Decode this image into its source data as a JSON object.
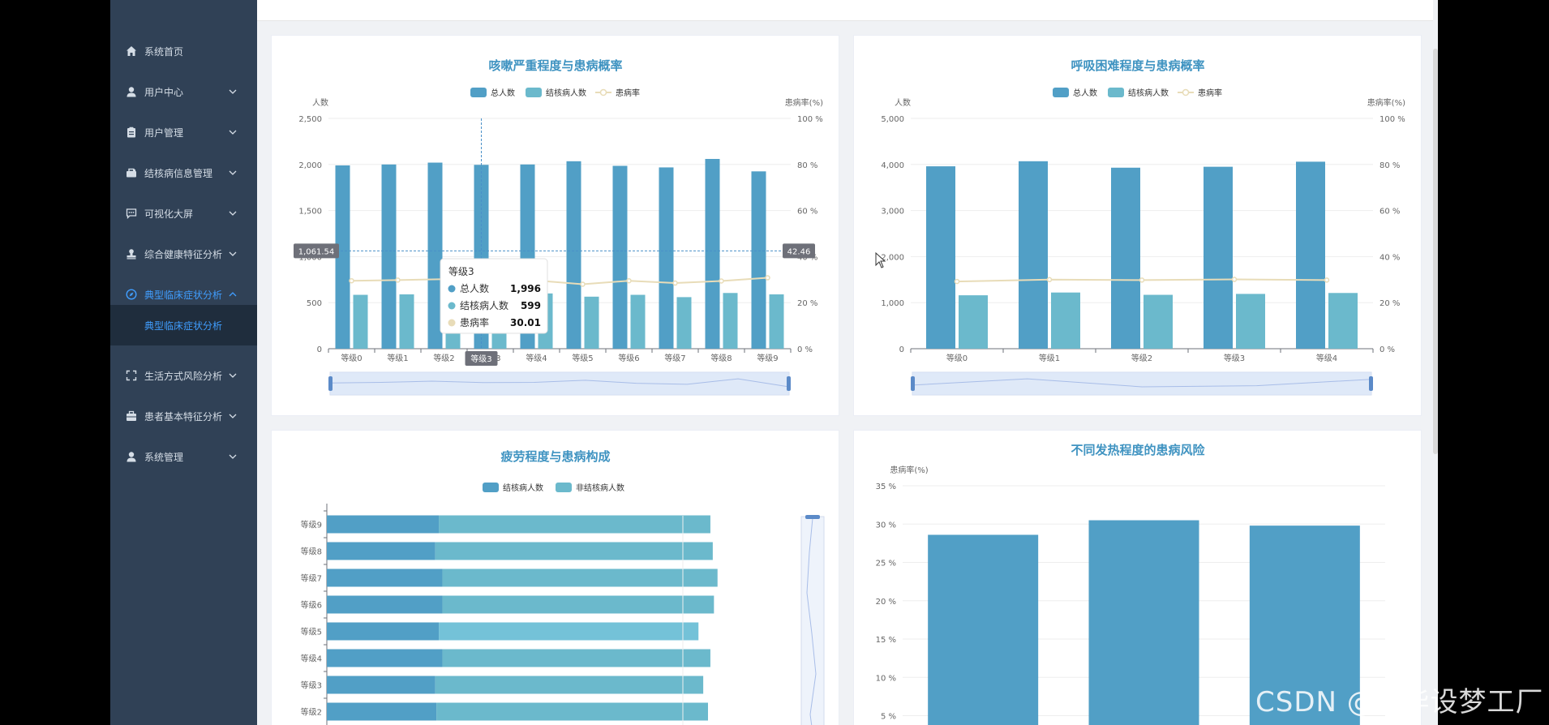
{
  "sidebar": {
    "items": [
      {
        "label": "系统首页",
        "icon": "home-icon",
        "chevron": false
      },
      {
        "label": "用户中心",
        "icon": "user-icon",
        "chevron": true
      },
      {
        "label": "用户管理",
        "icon": "clipboard-icon",
        "chevron": true
      },
      {
        "label": "结核病信息管理",
        "icon": "briefcase-icon",
        "chevron": true
      },
      {
        "label": "可视化大屏",
        "icon": "message-icon",
        "chevron": true
      },
      {
        "label": "综合健康特征分析",
        "icon": "stamp-icon",
        "chevron": true
      },
      {
        "label": "典型临床症状分析",
        "icon": "compass-icon",
        "chevron": true,
        "active": true
      },
      {
        "label": "生活方式风险分析",
        "icon": "fullscreen-icon",
        "chevron": true
      },
      {
        "label": "患者基本特征分析",
        "icon": "suitcase-icon",
        "chevron": true
      },
      {
        "label": "系统管理",
        "icon": "user-icon",
        "chevron": true
      }
    ],
    "sub_item": "典型临床症状分析"
  },
  "watermark": "CSDN @IT毕设梦工厂",
  "colors": {
    "bar_total": "#519fc6",
    "bar_tb": "#6bb9cc",
    "line": "#e8dcb8",
    "title": "#3f93c1",
    "sidebar": "#304156",
    "active": "#409eff"
  },
  "chart_data": [
    {
      "type": "bar",
      "title": "咳嗽严重程度与患病概率",
      "legend": [
        "总人数",
        "结核病人数",
        "患病率"
      ],
      "ylabel_left": "人数",
      "ylabel_right": "患病率(%)",
      "ylim_left": [
        0,
        2500
      ],
      "yticks_left": [
        "0",
        "500",
        "1,000",
        "1,500",
        "2,000",
        "2,500"
      ],
      "ylim_right": [
        0,
        100
      ],
      "yticks_right": [
        "0 %",
        "20 %",
        "40 %",
        "60 %",
        "80 %",
        "100 %"
      ],
      "categories": [
        "等级0",
        "等级1",
        "等级2",
        "等级3",
        "等级4",
        "等级5",
        "等级6",
        "等级7",
        "等级8",
        "等级9"
      ],
      "series": [
        {
          "name": "总人数",
          "type": "bar",
          "values": [
            1990,
            2000,
            2020,
            1996,
            2000,
            2035,
            1985,
            1968,
            2060,
            1925
          ]
        },
        {
          "name": "结核病人数",
          "type": "bar",
          "values": [
            585,
            590,
            600,
            599,
            600,
            565,
            585,
            560,
            605,
            590
          ]
        },
        {
          "name": "患病率",
          "type": "line",
          "values": [
            29.5,
            29.8,
            30.2,
            30.01,
            29.6,
            28.0,
            29.5,
            28.5,
            29.4,
            30.8
          ]
        }
      ],
      "crosshair": {
        "left_label": "1,061.54",
        "right_label": "42.46",
        "x_label": "等级3"
      },
      "tooltip": {
        "title": "等级3",
        "rows": [
          {
            "name": "总人数",
            "value": "1,996"
          },
          {
            "name": "结核病人数",
            "value": "599"
          },
          {
            "name": "患病率",
            "value": "30.01"
          }
        ]
      }
    },
    {
      "type": "bar",
      "title": "呼吸困难程度与患病概率",
      "legend": [
        "总人数",
        "结核病人数",
        "患病率"
      ],
      "ylabel_left": "人数",
      "ylabel_right": "患病率(%)",
      "ylim_left": [
        0,
        5000
      ],
      "yticks_left": [
        "0",
        "1,000",
        "2,000",
        "3,000",
        "4,000",
        "5,000"
      ],
      "ylim_right": [
        0,
        100
      ],
      "yticks_right": [
        "0 %",
        "20 %",
        "40 %",
        "60 %",
        "80 %",
        "100 %"
      ],
      "categories": [
        "等级0",
        "等级1",
        "等级2",
        "等级3",
        "等级4"
      ],
      "series": [
        {
          "name": "总人数",
          "type": "bar",
          "values": [
            3960,
            4070,
            3930,
            3950,
            4060
          ]
        },
        {
          "name": "结核病人数",
          "type": "bar",
          "values": [
            1160,
            1220,
            1170,
            1190,
            1210
          ]
        },
        {
          "name": "患病率",
          "type": "line",
          "values": [
            29.2,
            30.0,
            29.8,
            30.1,
            29.8
          ]
        }
      ]
    },
    {
      "type": "bar",
      "orientation": "horizontal",
      "stacked": true,
      "title": "疲劳程度与患病构成",
      "legend": [
        "结核病人数",
        "非结核病人数"
      ],
      "categories": [
        "等级9",
        "等级8",
        "等级7",
        "等级6",
        "等级5",
        "等级4",
        "等级3",
        "等级2"
      ],
      "xlim": [
        0,
        1600
      ],
      "series": [
        {
          "name": "结核病人数",
          "values": [
            470,
            455,
            485,
            485,
            470,
            485,
            455,
            460
          ]
        },
        {
          "name": "非结核病人数",
          "values": [
            1140,
            1165,
            1155,
            1140,
            1090,
            1125,
            1125,
            1140
          ]
        }
      ]
    },
    {
      "type": "bar",
      "title": "不同发热程度的患病风险",
      "ylabel": "患病率(%)",
      "ylim": [
        0,
        35
      ],
      "yticks": [
        "5 %",
        "10 %",
        "15 %",
        "20 %",
        "25 %",
        "30 %",
        "35 %"
      ],
      "values": [
        28.6,
        30.5,
        29.8
      ]
    }
  ]
}
